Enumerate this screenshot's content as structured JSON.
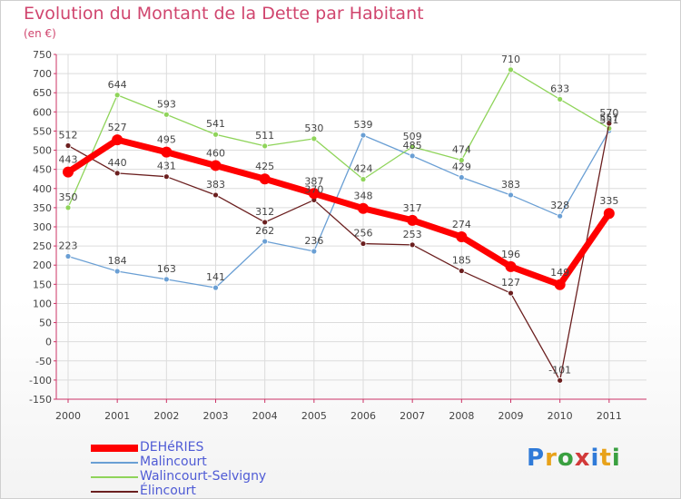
{
  "title": "Evolution du Montant de la Dette par Habitant",
  "unit": "(en €)",
  "logo": "Proxiti",
  "chart_data": {
    "type": "line",
    "title": "Evolution du Montant de la Dette par Habitant",
    "subtitle": "(en €)",
    "xlabel": "",
    "ylabel": "",
    "x": [
      "2000",
      "2001",
      "2002",
      "2003",
      "2004",
      "2005",
      "2006",
      "2007",
      "2008",
      "2009",
      "2010",
      "2011"
    ],
    "ylim": [
      -150,
      750
    ],
    "yticks": [
      -150,
      -100,
      -50,
      0,
      50,
      100,
      150,
      200,
      250,
      300,
      350,
      400,
      450,
      500,
      550,
      600,
      650,
      700,
      750
    ],
    "grid": true,
    "legend_position": "bottom-left",
    "series": [
      {
        "name": "DEHéRIES",
        "color": "#ff0000",
        "values": [
          443,
          527,
          495,
          460,
          425,
          387,
          348,
          317,
          274,
          196,
          149,
          335
        ]
      },
      {
        "name": "Malincourt",
        "color": "#6a9fd4",
        "values": [
          223,
          184,
          163,
          141,
          262,
          236,
          539,
          485,
          429,
          383,
          328,
          551
        ]
      },
      {
        "name": "Walincourt-Selvigny",
        "color": "#8fd45a",
        "values": [
          350,
          644,
          593,
          541,
          511,
          530,
          424,
          509,
          474,
          710,
          633,
          557
        ]
      },
      {
        "name": "Élincourt",
        "color": "#6b1f1f",
        "values": [
          512,
          440,
          431,
          383,
          312,
          370,
          256,
          253,
          185,
          127,
          -101,
          570
        ]
      }
    ]
  }
}
